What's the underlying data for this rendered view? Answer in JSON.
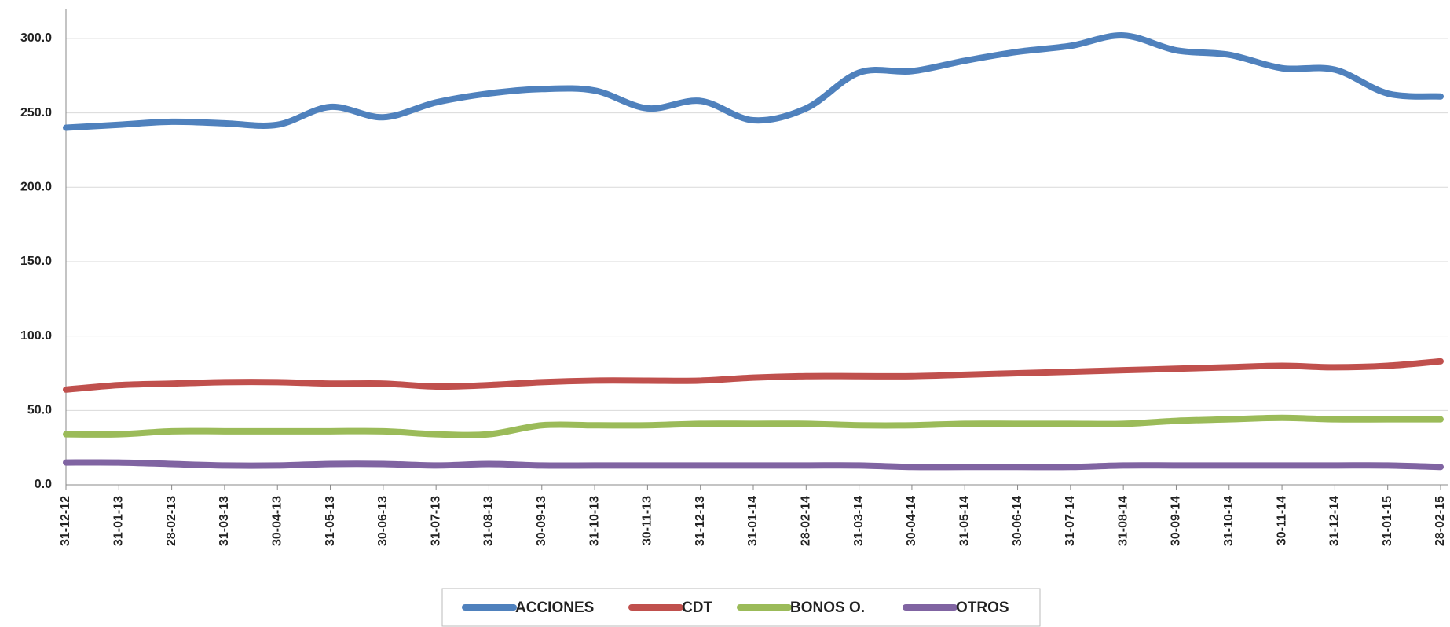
{
  "chart_data": {
    "type": "line",
    "categories": [
      "31-12-12",
      "31-01-13",
      "28-02-13",
      "31-03-13",
      "30-04-13",
      "31-05-13",
      "30-06-13",
      "31-07-13",
      "31-08-13",
      "30-09-13",
      "31-10-13",
      "30-11-13",
      "31-12-13",
      "31-01-14",
      "28-02-14",
      "31-03-14",
      "30-04-14",
      "31-05-14",
      "30-06-14",
      "31-07-14",
      "31-08-14",
      "30-09-14",
      "31-10-14",
      "30-11-14",
      "31-12-14",
      "31-01-15",
      "28-02-15"
    ],
    "series": [
      {
        "name": "ACCIONES",
        "color": "#4f81bd",
        "values": [
          240,
          242,
          244,
          243,
          242,
          254,
          247,
          257,
          263,
          266,
          265,
          253,
          258,
          245,
          253,
          277,
          278,
          285,
          291,
          295,
          302,
          292,
          289,
          280,
          279,
          263,
          261
        ]
      },
      {
        "name": "CDT",
        "color": "#c0504d",
        "values": [
          64,
          67,
          68,
          69,
          69,
          68,
          68,
          66,
          67,
          69,
          70,
          70,
          70,
          72,
          73,
          73,
          73,
          74,
          75,
          76,
          77,
          78,
          79,
          80,
          79,
          80,
          83
        ]
      },
      {
        "name": "BONOS O.",
        "color": "#9bbb59",
        "values": [
          34,
          34,
          36,
          36,
          36,
          36,
          36,
          34,
          34,
          40,
          40,
          40,
          41,
          41,
          41,
          40,
          40,
          41,
          41,
          41,
          41,
          43,
          44,
          45,
          44,
          44,
          44
        ]
      },
      {
        "name": "OTROS",
        "color": "#8064a2",
        "values": [
          15,
          15,
          14,
          13,
          13,
          14,
          14,
          13,
          14,
          13,
          13,
          13,
          13,
          13,
          13,
          13,
          12,
          12,
          12,
          12,
          13,
          13,
          13,
          13,
          13,
          13,
          12
        ]
      }
    ],
    "ylim": [
      0,
      320
    ],
    "yticks": [
      {
        "value": 0,
        "label": "0.0"
      },
      {
        "value": 50,
        "label": "50.0"
      },
      {
        "value": 100,
        "label": "100.0"
      },
      {
        "value": 150,
        "label": "150.0"
      },
      {
        "value": 200,
        "label": "200.0"
      },
      {
        "value": 250,
        "label": "250.0"
      },
      {
        "value": 300,
        "label": "300.0"
      }
    ],
    "grid": true,
    "legend": "bottom"
  }
}
